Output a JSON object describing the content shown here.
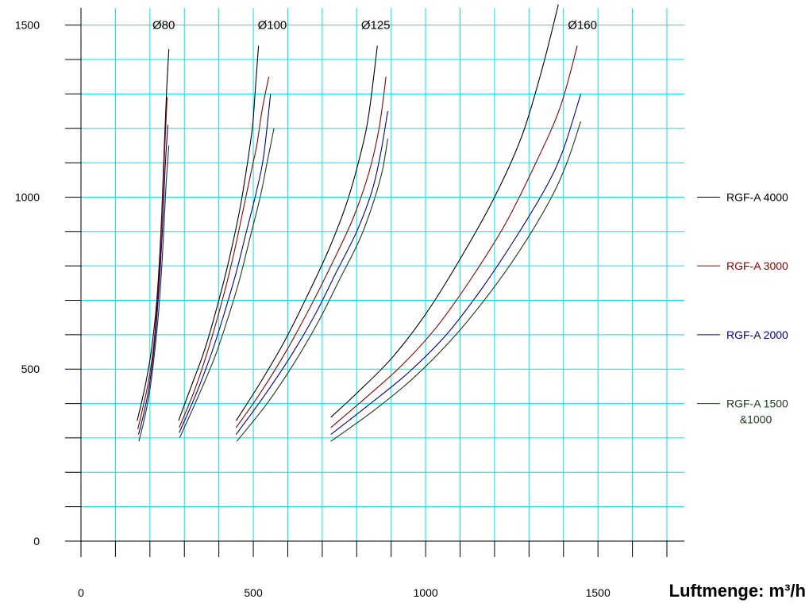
{
  "chart_data": {
    "type": "line",
    "xlabel": "Luftmenge: m³/h",
    "ylabel": "",
    "xlim": [
      0,
      1700
    ],
    "ylim": [
      0,
      1550
    ],
    "x_ticks": [
      0,
      500,
      1000,
      1500
    ],
    "y_ticks": [
      0,
      500,
      1000,
      1500
    ],
    "x_minor_step": 100,
    "y_minor_step": 100,
    "grid": true,
    "grid_color": "#00e5e5",
    "legend_position": "right",
    "diameter_labels": [
      {
        "text": "Ø80",
        "x": 240,
        "y": 1500
      },
      {
        "text": "Ø100",
        "x": 555,
        "y": 1500
      },
      {
        "text": "Ø125",
        "x": 855,
        "y": 1500
      },
      {
        "text": "Ø160",
        "x": 1455,
        "y": 1500
      }
    ],
    "legend": [
      {
        "name": "RGF-A 4000",
        "color": "#000000",
        "y": 1000
      },
      {
        "name": "RGF-A 3000",
        "color": "#8b0000",
        "y": 800
      },
      {
        "name": "RGF-A 2000",
        "color": "#00008b",
        "y": 600
      },
      {
        "name": "RGF-A 1500 &1000",
        "color": "#1a3a1a",
        "y": 400
      }
    ],
    "series": [
      {
        "name": "RGF-A 4000",
        "group": "Ø80",
        "color": "#000000",
        "points": [
          [
            163,
            350
          ],
          [
            175,
            400
          ],
          [
            190,
            470
          ],
          [
            205,
            560
          ],
          [
            220,
            700
          ],
          [
            232,
            900
          ],
          [
            240,
            1100
          ],
          [
            248,
            1300
          ],
          [
            255,
            1430
          ]
        ]
      },
      {
        "name": "RGF-A 3000",
        "group": "Ø80",
        "color": "#8b0000",
        "points": [
          [
            165,
            325
          ],
          [
            180,
            390
          ],
          [
            195,
            460
          ],
          [
            210,
            560
          ],
          [
            224,
            730
          ],
          [
            234,
            920
          ],
          [
            242,
            1120
          ],
          [
            250,
            1290
          ]
        ]
      },
      {
        "name": "RGF-A 2000",
        "group": "Ø80",
        "color": "#00008b",
        "points": [
          [
            167,
            310
          ],
          [
            182,
            370
          ],
          [
            198,
            450
          ],
          [
            212,
            560
          ],
          [
            226,
            730
          ],
          [
            236,
            900
          ],
          [
            244,
            1080
          ],
          [
            252,
            1210
          ]
        ]
      },
      {
        "name": "RGF-A 1500 &1000",
        "group": "Ø80",
        "color": "#1a3a1a",
        "points": [
          [
            168,
            290
          ],
          [
            185,
            360
          ],
          [
            200,
            440
          ],
          [
            215,
            560
          ],
          [
            228,
            700
          ],
          [
            238,
            860
          ],
          [
            246,
            1020
          ],
          [
            255,
            1150
          ]
        ]
      },
      {
        "name": "RGF-A 4000",
        "group": "Ø100",
        "color": "#000000",
        "points": [
          [
            283,
            350
          ],
          [
            320,
            450
          ],
          [
            360,
            560
          ],
          [
            400,
            700
          ],
          [
            430,
            820
          ],
          [
            460,
            960
          ],
          [
            480,
            1080
          ],
          [
            497,
            1200
          ],
          [
            505,
            1300
          ],
          [
            515,
            1440
          ]
        ]
      },
      {
        "name": "RGF-A 3000",
        "group": "Ø100",
        "color": "#8b0000",
        "points": [
          [
            285,
            330
          ],
          [
            330,
            440
          ],
          [
            370,
            560
          ],
          [
            410,
            700
          ],
          [
            440,
            820
          ],
          [
            470,
            960
          ],
          [
            495,
            1080
          ],
          [
            510,
            1150
          ],
          [
            525,
            1250
          ],
          [
            545,
            1350
          ]
        ]
      },
      {
        "name": "RGF-A 2000",
        "group": "Ø100",
        "color": "#00008b",
        "points": [
          [
            285,
            315
          ],
          [
            335,
            430
          ],
          [
            380,
            550
          ],
          [
            415,
            660
          ],
          [
            450,
            780
          ],
          [
            480,
            900
          ],
          [
            510,
            1020
          ],
          [
            530,
            1120
          ],
          [
            550,
            1300
          ]
        ]
      },
      {
        "name": "RGF-A 1500 &1000",
        "group": "Ø100",
        "color": "#1a3a1a",
        "points": [
          [
            286,
            300
          ],
          [
            340,
            420
          ],
          [
            390,
            540
          ],
          [
            430,
            660
          ],
          [
            460,
            760
          ],
          [
            490,
            880
          ],
          [
            520,
            1000
          ],
          [
            540,
            1100
          ],
          [
            560,
            1200
          ]
        ]
      },
      {
        "name": "RGF-A 4000",
        "group": "Ø125",
        "color": "#000000",
        "points": [
          [
            450,
            350
          ],
          [
            520,
            460
          ],
          [
            590,
            580
          ],
          [
            660,
            720
          ],
          [
            720,
            850
          ],
          [
            770,
            980
          ],
          [
            810,
            1120
          ],
          [
            835,
            1240
          ],
          [
            860,
            1440
          ]
        ]
      },
      {
        "name": "RGF-A 3000",
        "group": "Ø125",
        "color": "#8b0000",
        "points": [
          [
            450,
            330
          ],
          [
            520,
            430
          ],
          [
            600,
            560
          ],
          [
            670,
            690
          ],
          [
            730,
            810
          ],
          [
            790,
            940
          ],
          [
            835,
            1070
          ],
          [
            865,
            1200
          ],
          [
            885,
            1350
          ]
        ]
      },
      {
        "name": "RGF-A 2000",
        "group": "Ø125",
        "color": "#00008b",
        "points": [
          [
            450,
            310
          ],
          [
            530,
            420
          ],
          [
            610,
            540
          ],
          [
            680,
            660
          ],
          [
            740,
            780
          ],
          [
            800,
            900
          ],
          [
            845,
            1020
          ],
          [
            870,
            1130
          ],
          [
            890,
            1250
          ]
        ]
      },
      {
        "name": "RGF-A 1500 &1000",
        "group": "Ø125",
        "color": "#1a3a1a",
        "points": [
          [
            452,
            290
          ],
          [
            540,
            400
          ],
          [
            620,
            520
          ],
          [
            690,
            640
          ],
          [
            750,
            760
          ],
          [
            810,
            880
          ],
          [
            850,
            990
          ],
          [
            875,
            1080
          ],
          [
            890,
            1170
          ]
        ]
      },
      {
        "name": "RGF-A 4000",
        "group": "Ø160",
        "color": "#000000",
        "points": [
          [
            725,
            360
          ],
          [
            800,
            430
          ],
          [
            900,
            530
          ],
          [
            1000,
            660
          ],
          [
            1100,
            820
          ],
          [
            1200,
            1000
          ],
          [
            1280,
            1180
          ],
          [
            1340,
            1380
          ],
          [
            1385,
            1560
          ]
        ]
      },
      {
        "name": "RGF-A 3000",
        "group": "Ø160",
        "color": "#8b0000",
        "points": [
          [
            725,
            330
          ],
          [
            830,
            420
          ],
          [
            930,
            510
          ],
          [
            1030,
            620
          ],
          [
            1130,
            760
          ],
          [
            1230,
            920
          ],
          [
            1320,
            1100
          ],
          [
            1390,
            1260
          ],
          [
            1440,
            1440
          ]
        ]
      },
      {
        "name": "RGF-A 2000",
        "group": "Ø160",
        "color": "#00008b",
        "points": [
          [
            725,
            310
          ],
          [
            840,
            400
          ],
          [
            950,
            490
          ],
          [
            1060,
            600
          ],
          [
            1160,
            730
          ],
          [
            1260,
            880
          ],
          [
            1350,
            1030
          ],
          [
            1400,
            1140
          ],
          [
            1450,
            1300
          ]
        ]
      },
      {
        "name": "RGF-A 1500 &1000",
        "group": "Ø160",
        "color": "#1a3a1a",
        "points": [
          [
            725,
            290
          ],
          [
            850,
            380
          ],
          [
            960,
            470
          ],
          [
            1070,
            580
          ],
          [
            1170,
            700
          ],
          [
            1270,
            840
          ],
          [
            1360,
            990
          ],
          [
            1410,
            1100
          ],
          [
            1450,
            1220
          ]
        ]
      }
    ]
  }
}
